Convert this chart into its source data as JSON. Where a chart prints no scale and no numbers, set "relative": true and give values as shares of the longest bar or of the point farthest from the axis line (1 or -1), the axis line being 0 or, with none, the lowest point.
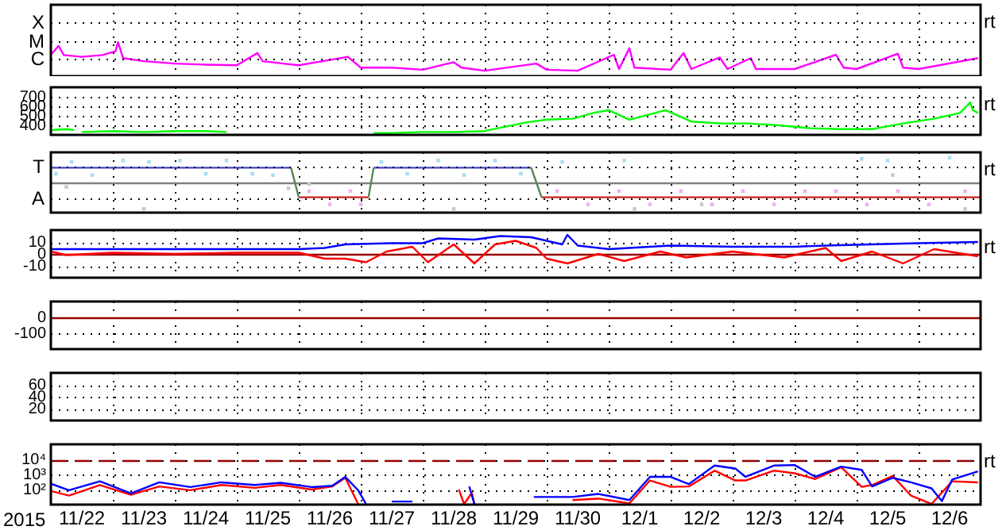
{
  "chart_data": [
    {
      "type": "line",
      "relative": true,
      "grid": "x",
      "tick_labels": "y",
      "annotations": [
        "X",
        "M",
        "C",
        "rt"
      ],
      "xlim": [
        "2015-11-22",
        "2015-12-07"
      ],
      "xticks": [
        {
          "value": "2015-11-23",
          "label": null
        },
        {
          "value": "2015-11-24",
          "label": null
        },
        {
          "value": "2015-11-25",
          "label": null
        },
        {
          "value": "2015-11-26",
          "label": null
        },
        {
          "value": "2015-11-27",
          "label": null
        },
        {
          "value": "2015-11-28",
          "label": null
        },
        {
          "value": "2015-11-29",
          "label": null
        },
        {
          "value": "2015-11-30",
          "label": null
        },
        {
          "value": "2015-12-01",
          "label": null
        },
        {
          "value": "2015-12-02",
          "label": null
        },
        {
          "value": "2015-12-03",
          "label": null
        },
        {
          "value": "2015-12-04",
          "label": null
        },
        {
          "value": "2015-12-05",
          "label": null
        },
        {
          "value": "2015-12-06",
          "label": null
        }
      ],
      "series": [
        {
          "color": "#ff00ff",
          "x": [
            "2015-11-22T00:00",
            "2015-11-22T03:00",
            "2015-11-22T05:00",
            "2015-11-22T12:00",
            "2015-11-22T20:00",
            "2015-11-23T01:00",
            "2015-11-23T02:00",
            "2015-11-23T04:00",
            "2015-11-23T12:00",
            "2015-11-24T00:00",
            "2015-11-24T12:00",
            "2015-11-25T00:00",
            "2015-11-25T08:00",
            "2015-11-25T10:00",
            "2015-11-25T18:00",
            "2015-11-26T00:00",
            "2015-11-26T19:00",
            "2015-11-27T00:00",
            "2015-11-27T12:00",
            "2015-11-28T00:00",
            "2015-11-28T12:00",
            "2015-11-28T15:00",
            "2015-11-29T00:00",
            "2015-11-29T20:00",
            "2015-11-30T00:00",
            "2015-11-30T12:00",
            "2015-12-01T02:00",
            "2015-12-01T04:00",
            "2015-12-01T08:00",
            "2015-12-01T10:00",
            "2015-12-02T00:00",
            "2015-12-02T05:00",
            "2015-12-02T08:00",
            "2015-12-02T19:00",
            "2015-12-02T22:00",
            "2015-12-03T07:00",
            "2015-12-03T09:00",
            "2015-12-04T00:00",
            "2015-12-04T16:00",
            "2015-12-04T19:00",
            "2015-12-05T00:00",
            "2015-12-05T16:00",
            "2015-12-05T18:00",
            "2015-12-06T00:00",
            "2015-12-06T23:00"
          ],
          "values": [
            0.63,
            0.89,
            0.62,
            0.57,
            0.62,
            0.73,
            1,
            0.53,
            0.44,
            0.37,
            0.34,
            0.32,
            0.68,
            0.44,
            0.37,
            0.32,
            0.57,
            0.25,
            0.25,
            0.19,
            0.41,
            0.25,
            0.16,
            0.37,
            0.19,
            0.16,
            0.63,
            0.21,
            0.82,
            0.25,
            0.19,
            0.68,
            0.21,
            0.55,
            0.21,
            0.53,
            0.21,
            0.21,
            0.63,
            0.25,
            0.21,
            0.66,
            0.25,
            0.21,
            0.53
          ]
        }
      ]
    },
    {
      "type": "line",
      "grid": true,
      "tick_labels": "y",
      "annotations": [
        "rt"
      ],
      "xlim": [
        "2015-11-22",
        "2015-12-07"
      ],
      "xticks": [
        {
          "value": "2015-11-23",
          "label": null
        },
        {
          "value": "2015-11-24",
          "label": null
        },
        {
          "value": "2015-11-25",
          "label": null
        },
        {
          "value": "2015-11-26",
          "label": null
        },
        {
          "value": "2015-11-27",
          "label": null
        },
        {
          "value": "2015-11-28",
          "label": null
        },
        {
          "value": "2015-11-29",
          "label": null
        },
        {
          "value": "2015-11-30",
          "label": null
        },
        {
          "value": "2015-12-01",
          "label": null
        },
        {
          "value": "2015-12-02",
          "label": null
        },
        {
          "value": "2015-12-03",
          "label": null
        },
        {
          "value": "2015-12-04",
          "label": null
        },
        {
          "value": "2015-12-05",
          "label": null
        },
        {
          "value": "2015-12-06",
          "label": null
        }
      ],
      "ylim": [
        300,
        800
      ],
      "yticks": [
        400,
        500,
        600,
        700
      ],
      "series": [
        {
          "color": "#00ff00",
          "x": [
            "2015-11-22T00:00",
            "2015-11-22T06:00",
            "2015-11-22T09:00",
            "2015-11-22T10:00",
            "2015-11-22T12:00",
            "2015-11-23T00:00",
            "2015-11-23T12:00",
            "2015-11-24T00:00",
            "2015-11-24T12:00",
            "2015-11-24T20:00",
            "2015-11-25T00:00",
            "2015-11-27T05:00",
            "2015-11-27T12:00",
            "2015-11-28T00:00",
            "2015-11-28T12:00",
            "2015-11-29T00:00",
            "2015-11-29T05:00",
            "2015-11-29T16:00",
            "2015-11-30T00:00",
            "2015-11-30T10:00",
            "2015-11-30T18:00",
            "2015-12-01T00:00",
            "2015-12-01T08:00",
            "2015-12-01T22:00",
            "2015-12-02T08:00",
            "2015-12-02T20:00",
            "2015-12-03T06:00",
            "2015-12-03T18:00",
            "2015-12-04T06:00",
            "2015-12-04T18:00",
            "2015-12-05T06:00",
            "2015-12-05T18:00",
            "2015-12-06T06:00",
            "2015-12-06T16:00",
            "2015-12-06T20:00",
            "2015-12-06T21:00",
            "2015-12-06T23:00"
          ],
          "values": [
            350,
            360,
            350,
            null,
            330,
            340,
            330,
            340,
            340,
            330,
            null,
            320,
            320,
            330,
            330,
            340,
            370,
            430,
            460,
            470,
            530,
            560,
            460,
            560,
            440,
            420,
            420,
            400,
            370,
            360,
            360,
            420,
            470,
            530,
            640,
            560,
            530
          ]
        }
      ]
    },
    {
      "type": "line",
      "relative": true,
      "grid": "x",
      "tick_labels": "y",
      "annotations": [
        "T",
        "A",
        "rt"
      ],
      "xlim": [
        "2015-11-22",
        "2015-12-07"
      ],
      "xticks": [
        {
          "value": "2015-11-23",
          "label": null
        },
        {
          "value": "2015-11-24",
          "label": null
        },
        {
          "value": "2015-11-25",
          "label": null
        },
        {
          "value": "2015-11-26",
          "label": null
        },
        {
          "value": "2015-11-27",
          "label": null
        },
        {
          "value": "2015-11-28",
          "label": null
        },
        {
          "value": "2015-11-29",
          "label": null
        },
        {
          "value": "2015-11-30",
          "label": null
        },
        {
          "value": "2015-12-01",
          "label": null
        },
        {
          "value": "2015-12-02",
          "label": null
        },
        {
          "value": "2015-12-03",
          "label": null
        },
        {
          "value": "2015-12-04",
          "label": null
        },
        {
          "value": "2015-12-05",
          "label": null
        },
        {
          "value": "2015-12-06",
          "label": null
        }
      ],
      "ref_lines": [
        {
          "axis": "y",
          "value": 0,
          "color": "#808080"
        }
      ],
      "series": [
        {
          "type": "scatter",
          "marker": "square",
          "color": "#c8c8c8",
          "x": [
            "2015-11-22T06:00",
            "2015-11-23T12:00",
            "2015-11-25T20:00",
            "2015-11-26T04:00",
            "2015-11-28T12:00",
            "2015-12-01T10:00",
            "2015-12-02T12:00",
            "2015-12-05T14:00",
            "2015-12-06T18:00"
          ],
          "values": [
            -0.17,
            -1,
            -0.22,
            -0.06,
            -1,
            -1,
            -0.83,
            0.28,
            -1
          ]
        },
        {
          "type": "scatter",
          "marker": "square",
          "color": "#aaddf0",
          "x": [
            "2015-11-22T02:00",
            "2015-11-22T08:00",
            "2015-11-22T16:00",
            "2015-11-23T04:00",
            "2015-11-23T14:00",
            "2015-11-24T02:00",
            "2015-11-24T12:00",
            "2015-11-24T20:00",
            "2015-11-25T06:00",
            "2015-11-25T14:00",
            "2015-11-27T08:00",
            "2015-11-27T18:00",
            "2015-11-28T06:00",
            "2015-11-28T16:00",
            "2015-11-29T04:00",
            "2015-11-29T14:00",
            "2015-11-30T06:00",
            "2015-12-01T06:00",
            "2015-12-05T02:00",
            "2015-12-05T12:00",
            "2015-12-06T12:00"
          ],
          "values": [
            0.33,
            0.78,
            0.28,
            0.83,
            0.78,
            0.83,
            0.33,
            0.83,
            0.33,
            0.28,
            0.78,
            0.33,
            0.83,
            0.28,
            0.83,
            0.33,
            0.78,
            0.83,
            0.89,
            0.83,
            0.94
          ]
        },
        {
          "type": "scatter",
          "marker": "square",
          "color": "#f0b0f0",
          "x": [
            "2015-11-26T04:00",
            "2015-11-26T12:00",
            "2015-11-26T20:00",
            "2015-11-27T00:00",
            "2015-11-30T04:00",
            "2015-11-30T16:00",
            "2015-12-01T04:00",
            "2015-12-01T16:00",
            "2015-12-02T04:00",
            "2015-12-02T16:00",
            "2015-12-03T04:00",
            "2015-12-03T16:00",
            "2015-12-04T04:00",
            "2015-12-04T16:00",
            "2015-12-05T04:00",
            "2015-12-05T16:00",
            "2015-12-06T04:00",
            "2015-12-06T18:00"
          ],
          "values": [
            -0.33,
            -0.83,
            -0.33,
            -0.83,
            -0.33,
            -0.83,
            -0.33,
            -0.83,
            -0.33,
            -0.83,
            -0.33,
            -0.83,
            -0.33,
            -0.33,
            -0.83,
            -0.33,
            -0.83,
            -0.33
          ]
        },
        {
          "color": "#4444cc",
          "x": [
            "2015-11-22T00:00",
            "2015-11-25T21:00",
            "2015-11-26T12:00",
            "2015-11-27T05:00",
            "2015-11-29T18:00"
          ],
          "values": [
            0.56,
            0.56,
            null,
            0.56,
            0.56
          ]
        },
        {
          "color": "#cc2222",
          "x": [
            "2015-11-26T00:00",
            "2015-11-27T03:00",
            "2015-11-28T12:00",
            "2015-11-29T22:00",
            "2015-12-07T00:00"
          ],
          "values": [
            -0.56,
            -0.56,
            null,
            -0.56,
            -0.56
          ]
        },
        {
          "color": "#558855",
          "x": [
            "2015-11-25T21:00",
            "2015-11-26T00:00",
            "2015-11-26T12:00",
            "2015-11-27T03:00",
            "2015-11-27T05:00",
            "2015-11-28T12:00",
            "2015-11-29T18:00",
            "2015-11-29T22:00"
          ],
          "values": [
            0.56,
            -0.56,
            null,
            -0.56,
            0.56,
            null,
            0.56,
            -0.56
          ]
        }
      ]
    },
    {
      "type": "line",
      "grid": true,
      "tick_labels": "y",
      "annotations": [
        "rt"
      ],
      "xlim": [
        "2015-11-22",
        "2015-12-07"
      ],
      "xticks": [
        {
          "value": "2015-11-23",
          "label": null
        },
        {
          "value": "2015-11-24",
          "label": null
        },
        {
          "value": "2015-11-25",
          "label": null
        },
        {
          "value": "2015-11-26",
          "label": null
        },
        {
          "value": "2015-11-27",
          "label": null
        },
        {
          "value": "2015-11-28",
          "label": null
        },
        {
          "value": "2015-11-29",
          "label": null
        },
        {
          "value": "2015-11-30",
          "label": null
        },
        {
          "value": "2015-12-01",
          "label": null
        },
        {
          "value": "2015-12-02",
          "label": null
        },
        {
          "value": "2015-12-03",
          "label": null
        },
        {
          "value": "2015-12-04",
          "label": null
        },
        {
          "value": "2015-12-05",
          "label": null
        },
        {
          "value": "2015-12-06",
          "label": null
        }
      ],
      "ylim": [
        -20,
        20
      ],
      "yticks": [
        -10,
        0,
        10
      ],
      "ref_lines": [
        {
          "axis": "y",
          "value": 0,
          "color": "#990000"
        }
      ],
      "series": [
        {
          "color": "#ff0000",
          "x": [
            "2015-11-22T00:00",
            "2015-11-22T06:00",
            "2015-11-23T00:00",
            "2015-11-24T00:00",
            "2015-11-25T00:00",
            "2015-11-26T00:00",
            "2015-11-26T10:00",
            "2015-11-26T18:00",
            "2015-11-27T02:00",
            "2015-11-27T10:00",
            "2015-11-27T20:00",
            "2015-11-28T02:00",
            "2015-11-28T12:00",
            "2015-11-28T20:00",
            "2015-11-29T04:00",
            "2015-11-29T12:00",
            "2015-11-29T20:00",
            "2015-11-30T00:00",
            "2015-11-30T08:00",
            "2015-11-30T20:00",
            "2015-12-01T06:00",
            "2015-12-01T20:00",
            "2015-12-02T06:00",
            "2015-12-03T00:00",
            "2015-12-03T20:00",
            "2015-12-04T12:00",
            "2015-12-04T18:00",
            "2015-12-05T06:00",
            "2015-12-05T18:00",
            "2015-12-06T06:00",
            "2015-12-06T23:00"
          ],
          "values": [
            2,
            -1,
            1,
            0,
            1,
            1,
            -4,
            -4,
            -7,
            2,
            6,
            -7,
            8,
            -8,
            8,
            11,
            5,
            -4,
            -8,
            0,
            -6,
            2,
            -3,
            2,
            -3,
            5,
            -6,
            2,
            -8,
            4,
            -2
          ]
        },
        {
          "color": "#0000ff",
          "x": [
            "2015-11-22T00:00",
            "2015-11-22T06:00",
            "2015-11-23T00:00",
            "2015-11-24T00:00",
            "2015-11-25T00:00",
            "2015-11-26T00:00",
            "2015-11-26T10:00",
            "2015-11-26T18:00",
            "2015-11-27T12:00",
            "2015-11-28T00:00",
            "2015-11-28T06:00",
            "2015-11-28T20:00",
            "2015-11-29T06:00",
            "2015-11-29T18:00",
            "2015-11-30T00:00",
            "2015-11-30T06:00",
            "2015-11-30T08:00",
            "2015-11-30T12:00",
            "2015-12-01T00:00",
            "2015-12-02T00:00",
            "2015-12-03T00:00",
            "2015-12-04T00:00",
            "2015-12-04T12:00",
            "2015-12-05T06:00",
            "2015-12-06T00:00",
            "2015-12-06T23:00"
          ],
          "values": [
            4,
            4,
            4,
            4,
            4,
            4,
            5,
            8,
            9,
            9,
            13,
            12,
            15,
            14,
            11,
            8,
            16,
            7,
            4,
            7,
            6,
            6,
            7,
            8,
            9,
            10
          ]
        }
      ]
    },
    {
      "type": "line",
      "grid": true,
      "tick_labels": "y",
      "xlim": [
        "2015-11-22",
        "2015-12-07"
      ],
      "xticks": [
        {
          "value": "2015-11-23",
          "label": null
        },
        {
          "value": "2015-11-24",
          "label": null
        },
        {
          "value": "2015-11-25",
          "label": null
        },
        {
          "value": "2015-11-26",
          "label": null
        },
        {
          "value": "2015-11-27",
          "label": null
        },
        {
          "value": "2015-11-28",
          "label": null
        },
        {
          "value": "2015-11-29",
          "label": null
        },
        {
          "value": "2015-11-30",
          "label": null
        },
        {
          "value": "2015-12-01",
          "label": null
        },
        {
          "value": "2015-12-02",
          "label": null
        },
        {
          "value": "2015-12-03",
          "label": null
        },
        {
          "value": "2015-12-04",
          "label": null
        },
        {
          "value": "2015-12-05",
          "label": null
        },
        {
          "value": "2015-12-06",
          "label": null
        }
      ],
      "ylim": [
        -200,
        100
      ],
      "yticks": [
        -100,
        0
      ],
      "ref_lines": [
        {
          "axis": "y",
          "value": 0,
          "color": "#990000"
        }
      ]
    },
    {
      "type": "line",
      "grid": true,
      "tick_labels": "y",
      "xlim": [
        "2015-11-22",
        "2015-12-07"
      ],
      "xticks": [
        {
          "value": "2015-11-23",
          "label": null
        },
        {
          "value": "2015-11-24",
          "label": null
        },
        {
          "value": "2015-11-25",
          "label": null
        },
        {
          "value": "2015-11-26",
          "label": null
        },
        {
          "value": "2015-11-27",
          "label": null
        },
        {
          "value": "2015-11-28",
          "label": null
        },
        {
          "value": "2015-11-29",
          "label": null
        },
        {
          "value": "2015-11-30",
          "label": null
        },
        {
          "value": "2015-12-01",
          "label": null
        },
        {
          "value": "2015-12-02",
          "label": null
        },
        {
          "value": "2015-12-03",
          "label": null
        },
        {
          "value": "2015-12-04",
          "label": null
        },
        {
          "value": "2015-12-05",
          "label": null
        },
        {
          "value": "2015-12-06",
          "label": null
        }
      ],
      "ylim": [
        0,
        80
      ],
      "yticks": [
        20,
        40,
        60
      ]
    },
    {
      "type": "line",
      "log": "y",
      "grid": true,
      "annotations": [
        "rt"
      ],
      "xlabel": "2015",
      "xlim": [
        "2015-11-22",
        "2015-12-07"
      ],
      "xticks": [
        {
          "value": "2015-11-22T12:00",
          "label": "11/22"
        },
        {
          "value": "2015-11-23",
          "label": null
        },
        {
          "value": "2015-11-23T12:00",
          "label": "11/23"
        },
        {
          "value": "2015-11-24",
          "label": null
        },
        {
          "value": "2015-11-24T12:00",
          "label": "11/24"
        },
        {
          "value": "2015-11-25",
          "label": null
        },
        {
          "value": "2015-11-25T12:00",
          "label": "11/25"
        },
        {
          "value": "2015-11-26",
          "label": null
        },
        {
          "value": "2015-11-26T12:00",
          "label": "11/26"
        },
        {
          "value": "2015-11-27",
          "label": null
        },
        {
          "value": "2015-11-27T12:00",
          "label": "11/27"
        },
        {
          "value": "2015-11-28",
          "label": null
        },
        {
          "value": "2015-11-28T12:00",
          "label": "11/28"
        },
        {
          "value": "2015-11-29",
          "label": null
        },
        {
          "value": "2015-11-29T12:00",
          "label": "11/29"
        },
        {
          "value": "2015-11-30",
          "label": null
        },
        {
          "value": "2015-11-30T12:00",
          "label": "11/30"
        },
        {
          "value": "2015-12-01",
          "label": null
        },
        {
          "value": "2015-12-01T12:00",
          "label": "12/1"
        },
        {
          "value": "2015-12-02",
          "label": null
        },
        {
          "value": "2015-12-02T12:00",
          "label": "12/2"
        },
        {
          "value": "2015-12-03",
          "label": null
        },
        {
          "value": "2015-12-03T12:00",
          "label": "12/3"
        },
        {
          "value": "2015-12-04",
          "label": null
        },
        {
          "value": "2015-12-04T12:00",
          "label": "12/4"
        },
        {
          "value": "2015-12-05",
          "label": null
        },
        {
          "value": "2015-12-05T12:00",
          "label": "12/5"
        },
        {
          "value": "2015-12-06",
          "label": null
        },
        {
          "value": "2015-12-06T12:00",
          "label": "12/6"
        }
      ],
      "ylim": [
        10,
        100000
      ],
      "yticks": [
        {
          "value": 100,
          "label": "10²"
        },
        {
          "value": 1000,
          "label": "10³"
        },
        {
          "value": 10000,
          "label": "10⁴"
        }
      ],
      "ref_lines": [
        {
          "axis": "y",
          "value": 10000,
          "color": "#990000",
          "line_style": "dashed"
        }
      ],
      "series": [
        {
          "color": "#ff0000",
          "x": [
            "2015-11-22T00:00",
            "2015-11-22T07:00",
            "2015-11-22T19:00",
            "2015-11-23T07:00",
            "2015-11-23T18:00",
            "2015-11-24T06:00",
            "2015-11-24T18:00",
            "2015-11-25T07:00",
            "2015-11-25T17:00",
            "2015-11-26T05:00",
            "2015-11-26T13:00",
            "2015-11-26T18:00",
            "2015-11-26T23:00",
            "2015-11-27T12:00",
            "2015-11-28T14:00",
            "2015-11-28T16:00",
            "2015-11-28T19:00",
            "2015-11-28T20:00",
            "2015-11-29T12:00",
            "2015-11-30T10:00",
            "2015-11-30T20:00",
            "2015-12-01T08:00",
            "2015-12-01T16:00",
            "2015-12-02T00:00",
            "2015-12-02T07:00",
            "2015-12-02T17:00",
            "2015-12-03T01:00",
            "2015-12-03T05:00",
            "2015-12-03T16:00",
            "2015-12-04T00:00",
            "2015-12-04T08:00",
            "2015-12-04T18:00",
            "2015-12-05T02:00",
            "2015-12-05T06:00",
            "2015-12-05T14:00",
            "2015-12-05T21:00",
            "2015-12-06T05:00",
            "2015-12-06T13:00",
            "2015-12-06T23:00"
          ],
          "values": [
            80,
            40,
            200,
            45,
            160,
            90,
            200,
            130,
            200,
            100,
            160,
            600,
            11,
            null,
            100,
            11,
            60,
            11,
            null,
            20,
            25,
            12,
            400,
            150,
            160,
            1800,
            400,
            400,
            1800,
            1200,
            500,
            3000,
            150,
            200,
            800,
            40,
            11,
            350,
            300
          ]
        },
        {
          "color": "#0000ff",
          "x": [
            "2015-11-22T00:00",
            "2015-11-22T07:00",
            "2015-11-22T19:00",
            "2015-11-23T07:00",
            "2015-11-23T18:00",
            "2015-11-24T06:00",
            "2015-11-24T18:00",
            "2015-11-25T07:00",
            "2015-11-25T17:00",
            "2015-11-26T05:00",
            "2015-11-26T13:00",
            "2015-11-26T18:00",
            "2015-11-26T23:00",
            "2015-11-27T02:00",
            "2015-11-27T06:00",
            "2015-11-27T12:00",
            "2015-11-27T20:00",
            "2015-11-28T06:00",
            "2015-11-28T18:00",
            "2015-11-28T20:00",
            "2015-11-29T06:00",
            "2015-11-29T19:00",
            "2015-11-30T10:00",
            "2015-11-30T20:00",
            "2015-12-01T08:00",
            "2015-12-01T16:00",
            "2015-12-02T00:00",
            "2015-12-02T07:00",
            "2015-12-02T17:00",
            "2015-12-03T01:00",
            "2015-12-03T05:00",
            "2015-12-03T16:00",
            "2015-12-04T00:00",
            "2015-12-04T08:00",
            "2015-12-04T18:00",
            "2015-12-05T02:00",
            "2015-12-05T06:00",
            "2015-12-05T14:00",
            "2015-12-05T21:00",
            "2015-12-06T05:00",
            "2015-12-06T09:00",
            "2015-12-06T13:00",
            "2015-12-06T23:00"
          ],
          "values": [
            245,
            89,
            350,
            55,
            300,
            145,
            300,
            200,
            280,
            145,
            178,
            690,
            89,
            11,
            null,
            16,
            16,
            null,
            160,
            11,
            null,
            32,
            32,
            51,
            20,
            690,
            690,
            230,
            3900,
            2500,
            700,
            3900,
            4200,
            700,
            3300,
            2000,
            160,
            600,
            300,
            120,
            17,
            460,
            1600
          ]
        }
      ]
    }
  ]
}
